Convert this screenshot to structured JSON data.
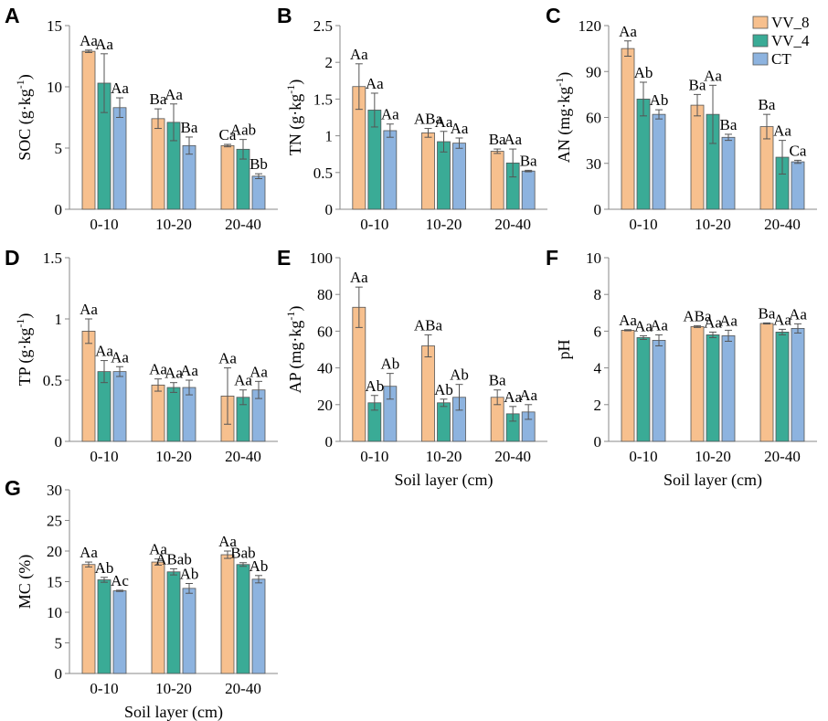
{
  "colors": {
    "VV_8": "#f7c08e",
    "VV_4": "#3aab96",
    "CT": "#8db3df"
  },
  "legend": [
    {
      "key": "VV_8",
      "label": "VV_8"
    },
    {
      "key": "VV_4",
      "label": "VV_4"
    },
    {
      "key": "CT",
      "label": "CT"
    }
  ],
  "chart_data": [
    {
      "id": "A",
      "type": "bar",
      "panel_letter": "A",
      "ylabel_main": "SOC (g·kg",
      "ylabel_sup": "-1",
      "ylabel_tail": ")",
      "xlabel": "",
      "categories": [
        "0-10",
        "10-20",
        "20-40"
      ],
      "ylim": [
        0,
        15
      ],
      "yticks": [
        0,
        5,
        10,
        15
      ],
      "series": [
        {
          "name": "VV_8",
          "values": [
            12.9,
            7.4,
            5.2
          ],
          "errors": [
            0.1,
            0.8,
            0.1
          ],
          "labels": [
            "Aa",
            "Ba",
            "Ca"
          ]
        },
        {
          "name": "VV_4",
          "values": [
            10.3,
            7.1,
            4.9
          ],
          "errors": [
            2.4,
            1.5,
            0.8
          ],
          "labels": [
            "Aa",
            "Aa",
            "Aab"
          ]
        },
        {
          "name": "CT",
          "values": [
            8.3,
            5.2,
            2.7
          ],
          "errors": [
            0.8,
            0.7,
            0.2
          ],
          "labels": [
            "Aa",
            "Ba",
            "Bb"
          ]
        }
      ]
    },
    {
      "id": "B",
      "type": "bar",
      "panel_letter": "B",
      "ylabel_main": "TN (g·kg",
      "ylabel_sup": "-1",
      "ylabel_tail": ")",
      "xlabel": "",
      "categories": [
        "0-10",
        "10-20",
        "20-40"
      ],
      "ylim": [
        0,
        2.5
      ],
      "yticks": [
        0,
        0.5,
        1,
        1.5,
        2,
        2.5
      ],
      "series": [
        {
          "name": "VV_8",
          "values": [
            1.67,
            1.04,
            0.79
          ],
          "errors": [
            0.31,
            0.06,
            0.03
          ],
          "labels": [
            "Aa",
            "ABa",
            "Ba"
          ]
        },
        {
          "name": "VV_4",
          "values": [
            1.35,
            0.92,
            0.63
          ],
          "errors": [
            0.23,
            0.14,
            0.19
          ],
          "labels": [
            "Aa",
            "Aa",
            "Aa"
          ]
        },
        {
          "name": "CT",
          "values": [
            1.07,
            0.9,
            0.52
          ],
          "errors": [
            0.09,
            0.07,
            0.01
          ],
          "labels": [
            "Aa",
            "Aa",
            "Ba"
          ]
        }
      ]
    },
    {
      "id": "C",
      "type": "bar",
      "panel_letter": "C",
      "ylabel_main": "AN (mg·kg",
      "ylabel_sup": "-1",
      "ylabel_tail": ")",
      "xlabel": "",
      "categories": [
        "0-10",
        "10-20",
        "20-40"
      ],
      "ylim": [
        0,
        120
      ],
      "yticks": [
        0,
        30,
        60,
        90,
        120
      ],
      "series": [
        {
          "name": "VV_8",
          "values": [
            105,
            68,
            54
          ],
          "errors": [
            5,
            7,
            8
          ],
          "labels": [
            "Aa",
            "Ba",
            "Ba"
          ]
        },
        {
          "name": "VV_4",
          "values": [
            72,
            62,
            34
          ],
          "errors": [
            11,
            19,
            11
          ],
          "labels": [
            "Ab",
            "Aa",
            "Aa"
          ]
        },
        {
          "name": "CT",
          "values": [
            62,
            47,
            31
          ],
          "errors": [
            3,
            2,
            1
          ],
          "labels": [
            "Ab",
            "Ba",
            "Ca"
          ]
        }
      ]
    },
    {
      "id": "D",
      "type": "bar",
      "panel_letter": "D",
      "ylabel_main": "TP (g·kg",
      "ylabel_sup": "-1",
      "ylabel_tail": ")",
      "xlabel": "",
      "categories": [
        "0-10",
        "10-20",
        "20-40"
      ],
      "ylim": [
        0,
        1.5
      ],
      "yticks": [
        0,
        0.5,
        1,
        1.5
      ],
      "series": [
        {
          "name": "VV_8",
          "values": [
            0.9,
            0.46,
            0.37
          ],
          "errors": [
            0.1,
            0.05,
            0.23
          ],
          "labels": [
            "Aa",
            "Aa",
            "Aa"
          ]
        },
        {
          "name": "VV_4",
          "values": [
            0.57,
            0.44,
            0.36
          ],
          "errors": [
            0.09,
            0.04,
            0.06
          ],
          "labels": [
            "Aa",
            "Aa",
            "Aa"
          ]
        },
        {
          "name": "CT",
          "values": [
            0.57,
            0.44,
            0.42
          ],
          "errors": [
            0.04,
            0.06,
            0.07
          ],
          "labels": [
            "Aa",
            "Aa",
            "Aa"
          ]
        }
      ]
    },
    {
      "id": "E",
      "type": "bar",
      "panel_letter": "E",
      "ylabel_main": "AP (mg·kg",
      "ylabel_sup": "-1",
      "ylabel_tail": ")",
      "xlabel": "Soil layer (cm)",
      "categories": [
        "0-10",
        "10-20",
        "20-40"
      ],
      "ylim": [
        0,
        100
      ],
      "yticks": [
        0,
        20,
        40,
        60,
        80,
        100
      ],
      "series": [
        {
          "name": "VV_8",
          "values": [
            73,
            52,
            24
          ],
          "errors": [
            11,
            6,
            4
          ],
          "labels": [
            "Aa",
            "ABa",
            "Ba"
          ]
        },
        {
          "name": "VV_4",
          "values": [
            21,
            21,
            15
          ],
          "errors": [
            4,
            2,
            4
          ],
          "labels": [
            "Ab",
            "Ab",
            "Aa"
          ]
        },
        {
          "name": "CT",
          "values": [
            30,
            24,
            16
          ],
          "errors": [
            7,
            7,
            4
          ],
          "labels": [
            "Ab",
            "Ab",
            "Aa"
          ]
        }
      ]
    },
    {
      "id": "F",
      "type": "bar",
      "panel_letter": "F",
      "ylabel_main": "pH",
      "ylabel_sup": "",
      "ylabel_tail": "",
      "xlabel": "Soil layer (cm)",
      "categories": [
        "0-10",
        "10-20",
        "20-40"
      ],
      "ylim": [
        0,
        10
      ],
      "yticks": [
        0,
        2,
        4,
        6,
        8,
        10
      ],
      "series": [
        {
          "name": "VV_8",
          "values": [
            6.05,
            6.25,
            6.42
          ],
          "errors": [
            0.03,
            0.05,
            0.03
          ],
          "labels": [
            "Aa",
            "ABa",
            "Ba"
          ]
        },
        {
          "name": "VV_4",
          "values": [
            5.65,
            5.8,
            5.95
          ],
          "errors": [
            0.1,
            0.15,
            0.15
          ],
          "labels": [
            "Aa",
            "Aa",
            "Aa"
          ]
        },
        {
          "name": "CT",
          "values": [
            5.5,
            5.75,
            6.15
          ],
          "errors": [
            0.3,
            0.3,
            0.25
          ],
          "labels": [
            "Aa",
            "Aa",
            "Aa"
          ]
        }
      ]
    },
    {
      "id": "G",
      "type": "bar",
      "panel_letter": "G",
      "ylabel_main": "MC (%)",
      "ylabel_sup": "",
      "ylabel_tail": "",
      "xlabel": "Soil layer (cm)",
      "categories": [
        "0-10",
        "10-20",
        "20-40"
      ],
      "ylim": [
        0,
        30
      ],
      "yticks": [
        0,
        5,
        10,
        15,
        20,
        25,
        30
      ],
      "series": [
        {
          "name": "VV_8",
          "values": [
            17.8,
            18.2,
            19.4
          ],
          "errors": [
            0.4,
            0.5,
            0.6
          ],
          "labels": [
            "Aa",
            "Aa",
            "Aa"
          ]
        },
        {
          "name": "VV_4",
          "values": [
            15.3,
            16.6,
            17.8
          ],
          "errors": [
            0.4,
            0.5,
            0.3
          ],
          "labels": [
            "Ab",
            "ABab",
            "Bab"
          ]
        },
        {
          "name": "CT",
          "values": [
            13.5,
            13.9,
            15.4
          ],
          "errors": [
            0.1,
            0.8,
            0.6
          ],
          "labels": [
            "Ac",
            "Ab",
            "Ab"
          ]
        }
      ]
    }
  ]
}
